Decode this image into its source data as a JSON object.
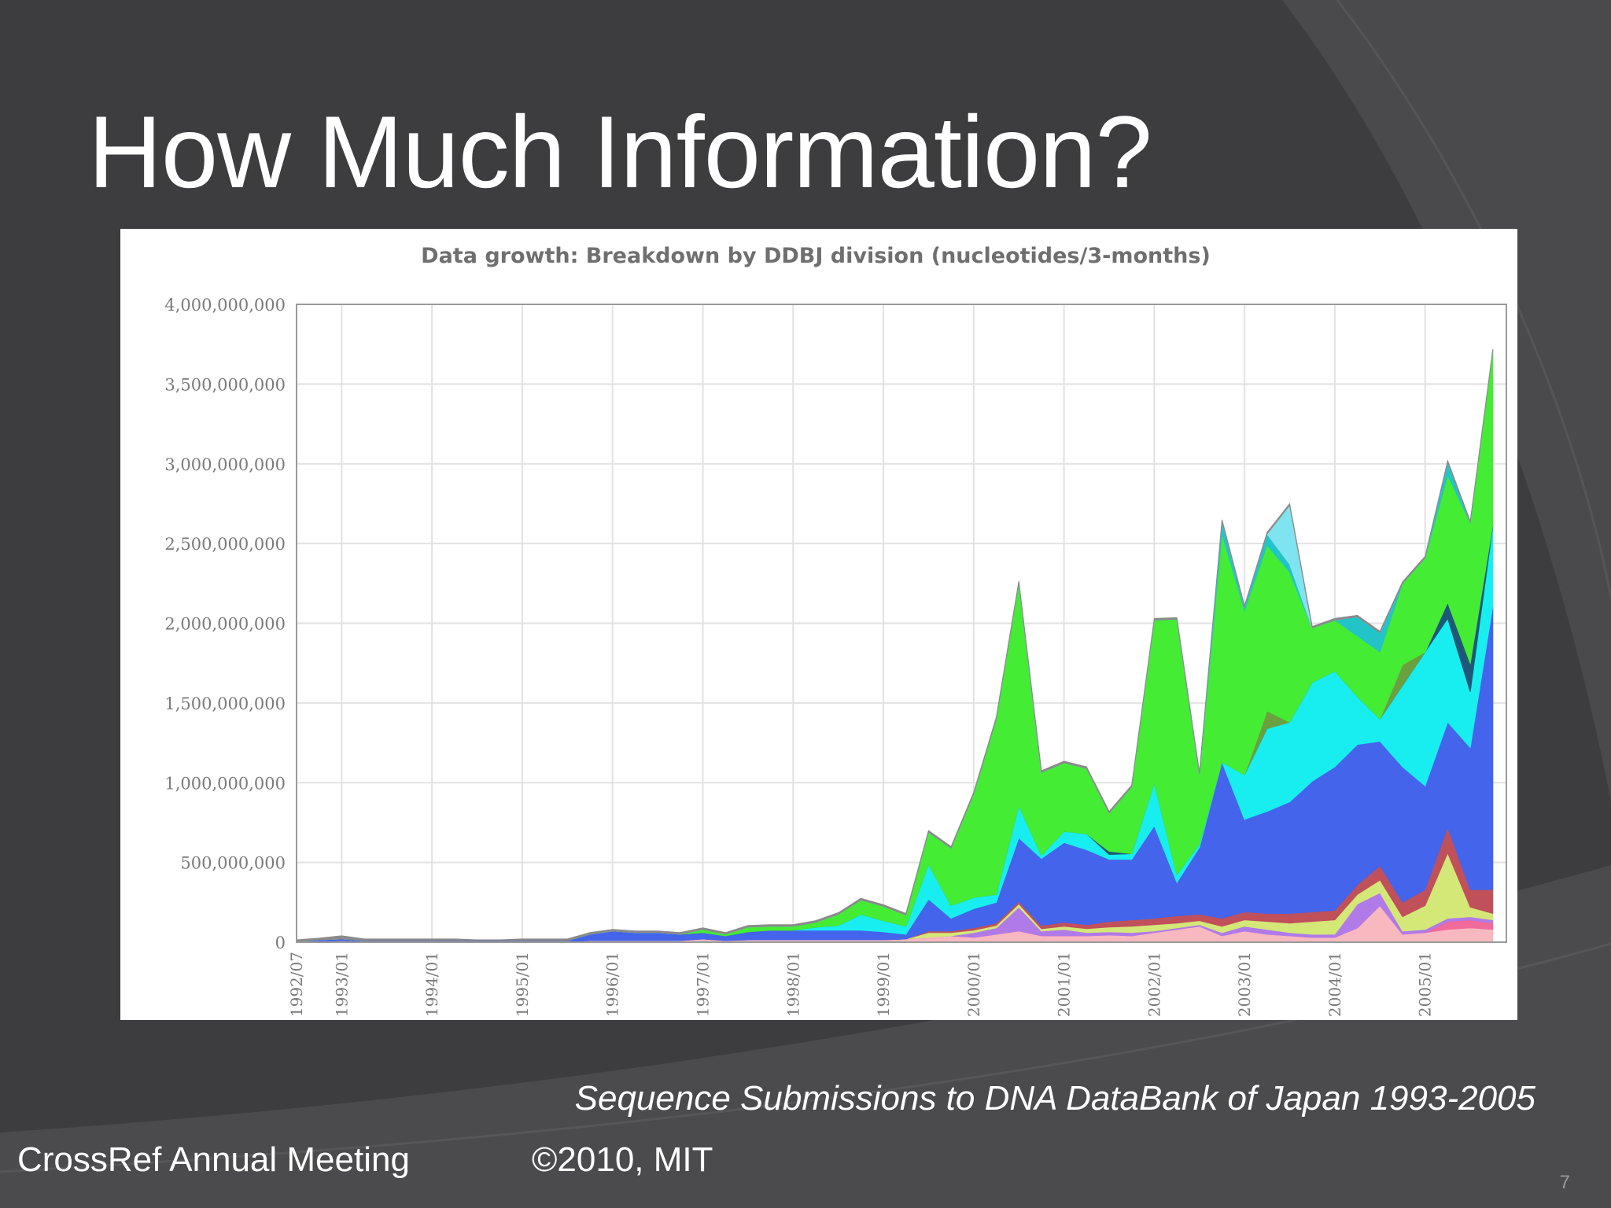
{
  "slide": {
    "title": "How Much Information?",
    "caption": "Sequence Submissions to DNA DataBank of Japan 1993-2005",
    "footer_left": "CrossRef Annual Meeting",
    "footer_center": "©2010, MIT",
    "page_number": "7"
  },
  "colors": {
    "background": "#3d3d3f",
    "panel": "#ffffff"
  },
  "chart_data": {
    "type": "area",
    "stacked": true,
    "title": "Data growth: Breakdown by DDBJ division (nucleotides/3-months)",
    "xlabel": "",
    "ylabel": "",
    "ylim": [
      0,
      4000000000
    ],
    "y_ticks": [
      0,
      500000000,
      1000000000,
      1500000000,
      2000000000,
      2500000000,
      3000000000,
      3500000000,
      4000000000
    ],
    "y_tick_labels": [
      "0",
      "500,000,000",
      "1,000,000,000",
      "1,500,000,000",
      "2,000,000,000",
      "2,500,000,000",
      "3,000,000,000",
      "3,500,000,000",
      "4,000,000,000"
    ],
    "x_tick_labels": [
      "1992/07",
      "1993/01",
      "1994/01",
      "1995/01",
      "1996/01",
      "1997/01",
      "1998/01",
      "1999/01",
      "2000/01",
      "2001/01",
      "2002/01",
      "2003/01",
      "2004/01",
      "2005/01"
    ],
    "x": [
      "1992/07",
      "1992/10",
      "1993/01",
      "1993/04",
      "1993/07",
      "1993/10",
      "1994/01",
      "1994/04",
      "1994/07",
      "1994/10",
      "1995/01",
      "1995/04",
      "1995/07",
      "1995/10",
      "1996/01",
      "1996/04",
      "1996/07",
      "1996/10",
      "1997/01",
      "1997/04",
      "1997/07",
      "1997/10",
      "1998/01",
      "1998/04",
      "1998/07",
      "1998/10",
      "1999/01",
      "1999/04",
      "1999/07",
      "1999/10",
      "2000/01",
      "2000/04",
      "2000/07",
      "2000/10",
      "2001/01",
      "2001/04",
      "2001/07",
      "2001/10",
      "2002/01",
      "2002/04",
      "2002/07",
      "2002/10",
      "2003/01",
      "2003/04",
      "2003/07",
      "2003/10",
      "2004/01",
      "2004/04",
      "2004/07",
      "2004/10",
      "2005/01",
      "2005/04",
      "2005/07",
      "2005/10"
    ],
    "grid": true,
    "legend": "none",
    "series": [
      {
        "color": "#f7b8c0",
        "values": [
          0,
          5,
          10,
          5,
          5,
          5,
          5,
          5,
          5,
          5,
          5,
          5,
          5,
          10,
          10,
          10,
          10,
          10,
          20,
          10,
          15,
          15,
          15,
          15,
          15,
          15,
          15,
          20,
          30,
          40,
          30,
          50,
          70,
          40,
          40,
          40,
          45,
          40,
          60,
          80,
          100,
          40,
          70,
          50,
          40,
          30,
          30,
          90,
          230,
          50,
          60,
          80,
          90,
          80
        ]
      },
      {
        "color": "#f06a9a",
        "values": [
          0,
          0,
          0,
          0,
          0,
          0,
          0,
          0,
          0,
          0,
          0,
          0,
          0,
          0,
          0,
          0,
          0,
          0,
          0,
          0,
          0,
          0,
          0,
          0,
          0,
          0,
          0,
          0,
          0,
          0,
          0,
          0,
          0,
          0,
          0,
          0,
          0,
          0,
          0,
          0,
          0,
          0,
          0,
          0,
          0,
          0,
          0,
          0,
          0,
          0,
          0,
          50,
          50,
          40
        ]
      },
      {
        "color": "#b07ae8",
        "values": [
          0,
          0,
          0,
          0,
          0,
          0,
          0,
          0,
          0,
          0,
          0,
          0,
          0,
          0,
          0,
          0,
          0,
          0,
          0,
          0,
          0,
          0,
          0,
          0,
          0,
          0,
          0,
          0,
          0,
          0,
          30,
          40,
          150,
          30,
          40,
          20,
          20,
          20,
          10,
          10,
          10,
          20,
          30,
          30,
          20,
          20,
          20,
          150,
          80,
          20,
          20,
          20,
          20,
          20
        ]
      },
      {
        "color": "#d4e878",
        "values": [
          0,
          0,
          0,
          0,
          0,
          0,
          0,
          0,
          0,
          0,
          0,
          0,
          0,
          0,
          0,
          0,
          0,
          0,
          0,
          0,
          0,
          0,
          0,
          0,
          0,
          0,
          0,
          0,
          30,
          20,
          15,
          15,
          20,
          15,
          20,
          25,
          30,
          40,
          40,
          30,
          25,
          40,
          40,
          50,
          60,
          80,
          90,
          60,
          80,
          90,
          150,
          410,
          60,
          40
        ]
      },
      {
        "color": "#c0505a",
        "values": [
          0,
          0,
          0,
          0,
          0,
          0,
          0,
          0,
          0,
          0,
          0,
          0,
          0,
          0,
          0,
          0,
          0,
          0,
          0,
          0,
          0,
          0,
          0,
          0,
          0,
          0,
          0,
          0,
          10,
          10,
          15,
          15,
          15,
          20,
          25,
          25,
          35,
          40,
          40,
          45,
          40,
          50,
          50,
          50,
          60,
          60,
          60,
          60,
          90,
          90,
          100,
          160,
          110,
          150
        ]
      },
      {
        "color": "#4464ec",
        "values": [
          5,
          10,
          10,
          5,
          5,
          5,
          5,
          5,
          5,
          5,
          5,
          5,
          5,
          40,
          60,
          50,
          50,
          40,
          40,
          30,
          50,
          60,
          60,
          60,
          60,
          60,
          50,
          30,
          200,
          80,
          120,
          130,
          400,
          420,
          500,
          470,
          390,
          380,
          580,
          210,
          420,
          980,
          580,
          640,
          700,
          820,
          900,
          880,
          780,
          850,
          650,
          660,
          890,
          1780
        ]
      },
      {
        "color": "#18eef0",
        "values": [
          0,
          0,
          0,
          0,
          0,
          0,
          0,
          0,
          0,
          0,
          0,
          0,
          0,
          0,
          0,
          0,
          0,
          0,
          0,
          0,
          0,
          0,
          0,
          20,
          30,
          100,
          70,
          50,
          220,
          80,
          70,
          50,
          200,
          20,
          70,
          100,
          30,
          35,
          270,
          50,
          20,
          0,
          280,
          520,
          500,
          620,
          600,
          300,
          140,
          510,
          840,
          650,
          350,
          500
        ]
      },
      {
        "color": "#1e5878",
        "values": [
          0,
          0,
          0,
          0,
          0,
          0,
          0,
          0,
          0,
          0,
          0,
          0,
          0,
          0,
          0,
          0,
          0,
          0,
          0,
          0,
          0,
          0,
          0,
          0,
          0,
          0,
          0,
          0,
          0,
          0,
          0,
          0,
          0,
          0,
          0,
          0,
          20,
          0,
          0,
          0,
          0,
          0,
          0,
          0,
          0,
          0,
          0,
          0,
          0,
          0,
          0,
          100,
          180,
          10
        ]
      },
      {
        "color": "#6aa040",
        "values": [
          0,
          0,
          0,
          0,
          0,
          0,
          0,
          0,
          0,
          0,
          0,
          0,
          0,
          0,
          0,
          0,
          0,
          0,
          0,
          0,
          0,
          0,
          0,
          0,
          0,
          0,
          0,
          0,
          0,
          0,
          0,
          0,
          0,
          0,
          0,
          0,
          0,
          0,
          0,
          0,
          0,
          0,
          0,
          110,
          0,
          0,
          0,
          0,
          0,
          130,
          0,
          0,
          0,
          0
        ]
      },
      {
        "color": "#44ec34",
        "values": [
          0,
          0,
          0,
          0,
          0,
          0,
          0,
          0,
          0,
          0,
          0,
          0,
          0,
          0,
          0,
          0,
          0,
          0,
          20,
          10,
          30,
          25,
          25,
          30,
          70,
          90,
          90,
          70,
          200,
          360,
          650,
          1100,
          1400,
          520,
          430,
          410,
          240,
          420,
          1020,
          1600,
          440,
          1430,
          1030,
          1040,
          940,
          340,
          320,
          380,
          420,
          510,
          590,
          800,
          880,
          1090
        ]
      },
      {
        "color": "#22c4c8",
        "values": [
          0,
          0,
          0,
          0,
          0,
          0,
          0,
          0,
          0,
          0,
          0,
          0,
          0,
          0,
          0,
          0,
          0,
          0,
          0,
          0,
          0,
          0,
          0,
          0,
          0,
          0,
          0,
          0,
          0,
          0,
          0,
          0,
          0,
          0,
          0,
          0,
          0,
          0,
          0,
          0,
          0,
          80,
          20,
          70,
          50,
          0,
          0,
          120,
          120,
          0,
          0,
          80,
          0,
          0
        ]
      },
      {
        "color": "#80e4f0",
        "values": [
          0,
          0,
          0,
          0,
          0,
          0,
          0,
          0,
          0,
          0,
          0,
          0,
          0,
          0,
          0,
          0,
          0,
          0,
          0,
          0,
          0,
          0,
          0,
          0,
          0,
          0,
          0,
          0,
          0,
          0,
          0,
          0,
          0,
          0,
          0,
          0,
          0,
          0,
          0,
          0,
          0,
          0,
          0,
          0,
          370,
          0,
          0,
          0,
          0,
          0,
          0,
          0,
          0,
          0
        ]
      },
      {
        "color": "#8a8a8a",
        "values": [
          10,
          10,
          20,
          10,
          10,
          10,
          10,
          10,
          5,
          5,
          10,
          10,
          10,
          10,
          10,
          10,
          10,
          10,
          10,
          10,
          10,
          10,
          10,
          10,
          10,
          10,
          10,
          10,
          10,
          10,
          10,
          10,
          10,
          10,
          10,
          10,
          10,
          10,
          10,
          10,
          10,
          10,
          10,
          10,
          10,
          10,
          10,
          10,
          10,
          10,
          10,
          10,
          10,
          10
        ]
      }
    ],
    "units": "millions"
  }
}
